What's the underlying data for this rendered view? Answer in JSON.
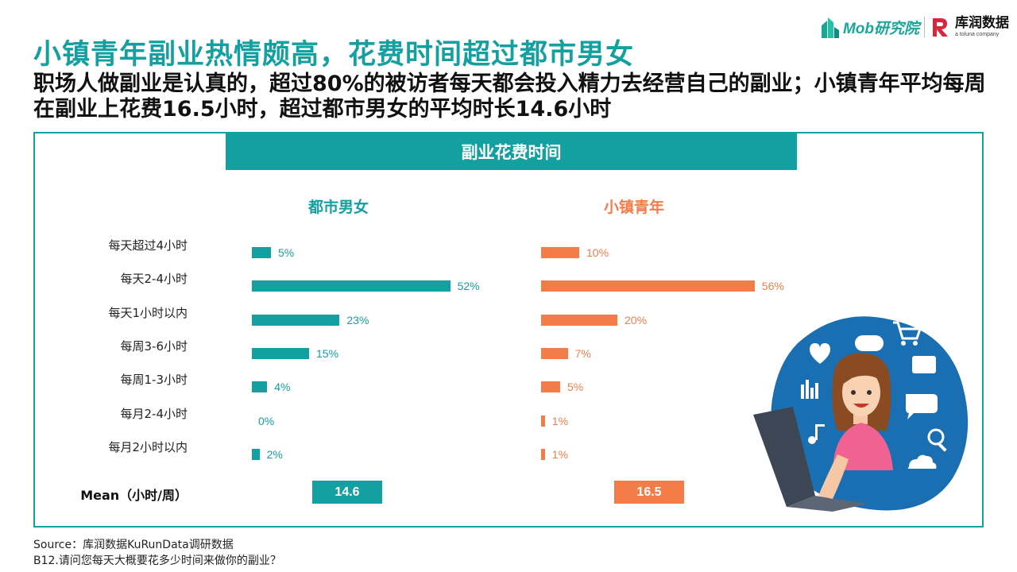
{
  "slide": {
    "title": "小镇青年副业热情颇高，花费时间超过都市男女",
    "subtitle": "职场人做副业是认真的，超过80%的被访者每天都会投入精力去经营自己的副业；小镇青年平均每周在副业上花费16.5小时，超过都市男女的平均时长14.6小时",
    "source": "Source：库润数据KuRunData调研数据",
    "question": "B12.请问您每天大概要花多少时间来做你的副业？"
  },
  "logos": {
    "mob": "Mob研究院",
    "kurun": "库润数据",
    "kurun_sub": "a toluna company"
  },
  "colors": {
    "teal": "#14a0a0",
    "orange": "#f47c48"
  },
  "chart_data": {
    "type": "bar",
    "title": "副业花费时间",
    "categories": [
      "每天超过4小时",
      "每天2-4小时",
      "每天1小时以内",
      "每周3-6小时",
      "每周1-3小时",
      "每月2-4小时",
      "每月2小时以内"
    ],
    "series": [
      {
        "name": "都市男女",
        "values": [
          5,
          52,
          23,
          15,
          4,
          0,
          2
        ],
        "labels": [
          "5%",
          "52%",
          "23%",
          "15%",
          "4%",
          "0%",
          "2%"
        ],
        "mean": "14.6",
        "color": "#14a0a0"
      },
      {
        "name": "小镇青年",
        "values": [
          10,
          56,
          20,
          7,
          5,
          1,
          1
        ],
        "labels": [
          "10%",
          "56%",
          "20%",
          "7%",
          "5%",
          "1%",
          "1%"
        ],
        "mean": "16.5",
        "color": "#f47c48"
      }
    ],
    "unit": "%",
    "mean_label": "Mean（小时/周）",
    "xlim": [
      0,
      60
    ]
  }
}
